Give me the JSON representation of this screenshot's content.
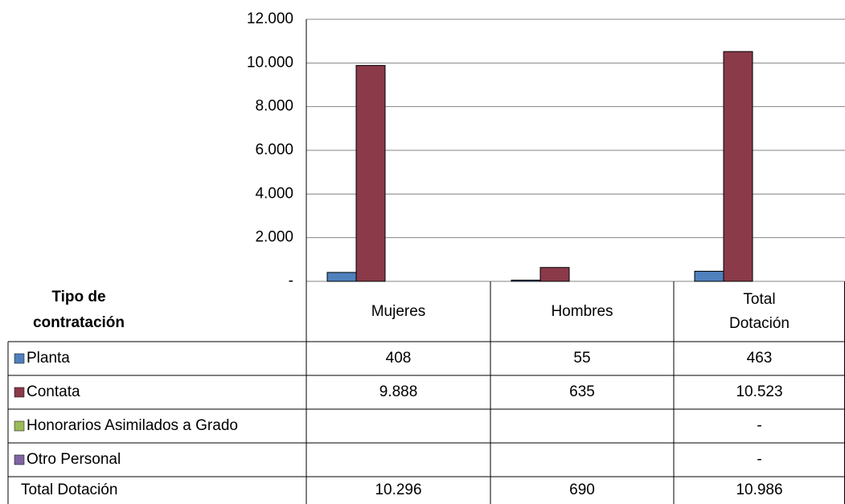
{
  "chart_data": {
    "type": "bar",
    "table_header": "Tipo de contratación",
    "categories": [
      "Mujeres",
      "Hombres",
      "Total Dotación"
    ],
    "series": [
      {
        "name": "Planta",
        "color": "#4f81bd",
        "values": [
          408,
          55,
          463
        ],
        "value_labels": [
          "408",
          "55",
          "463"
        ]
      },
      {
        "name": "Contata",
        "color": "#8b3a4a",
        "values": [
          9888,
          635,
          10523
        ],
        "value_labels": [
          "9.888",
          "635",
          "10.523"
        ]
      },
      {
        "name": "Honorarios Asimilados a Grado",
        "color": "#9bbb59",
        "values": [
          null,
          null,
          0
        ],
        "value_labels": [
          null,
          null,
          "-"
        ]
      },
      {
        "name": "Otro Personal",
        "color": "#8064a2",
        "values": [
          null,
          null,
          0
        ],
        "value_labels": [
          null,
          null,
          "-"
        ]
      }
    ],
    "totals": {
      "name": "Total Dotación",
      "values": [
        10296,
        690,
        10986
      ],
      "value_labels": [
        "10.296",
        "690",
        "10.986"
      ]
    },
    "ylim": [
      0,
      12000
    ],
    "yticks": [
      {
        "value": 0,
        "label": "-"
      },
      {
        "value": 2000,
        "label": "2.000"
      },
      {
        "value": 4000,
        "label": "4.000"
      },
      {
        "value": 6000,
        "label": "6.000"
      },
      {
        "value": 8000,
        "label": "8.000"
      },
      {
        "value": 10000,
        "label": "10.000"
      },
      {
        "value": 12000,
        "label": "12.000"
      }
    ],
    "grid": true
  }
}
